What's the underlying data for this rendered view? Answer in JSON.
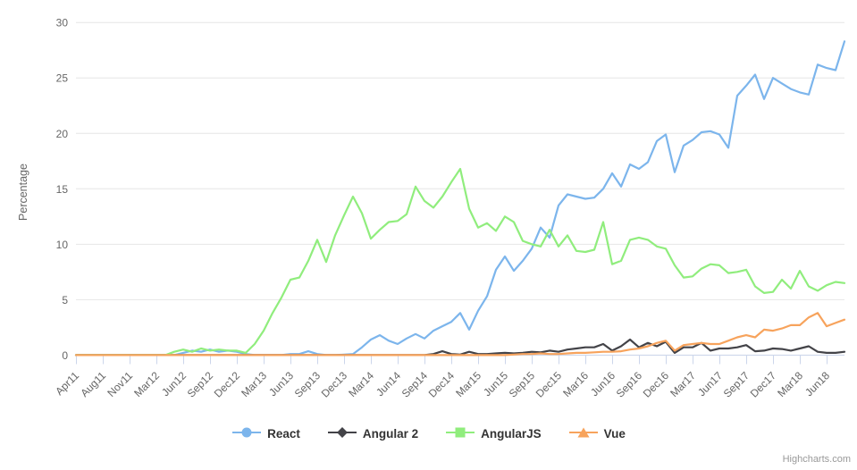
{
  "chart": {
    "credit": "Highcharts.com",
    "colors": {
      "grid": "#e6e6e6",
      "axis": "#ccd6eb",
      "label_text": "#666666",
      "legend_text": "#333333",
      "credit_text": "#999999"
    }
  },
  "chart_data": {
    "type": "line",
    "title": "",
    "xlabel": "",
    "ylabel": "Percentage",
    "ylim": [
      0,
      30
    ],
    "y_ticks": [
      0,
      5,
      10,
      15,
      20,
      25,
      30
    ],
    "grid": "horizontal",
    "legend_position": "bottom-center",
    "x_tick_labels": [
      "Apr11",
      "Aug11",
      "Nov11",
      "Mar12",
      "Jun12",
      "Sep12",
      "Dec12",
      "Mar13",
      "Jun13",
      "Sep13",
      "Dec13",
      "Mar14",
      "Jun14",
      "Sep14",
      "Dec14",
      "Mar15",
      "Jun15",
      "Sep15",
      "Dec15",
      "Mar16",
      "Jun16",
      "Sep16",
      "Dec16",
      "Mar17",
      "Jun17",
      "Sep17",
      "Dec17",
      "Mar18",
      "Jun18"
    ],
    "x_tick_every": 3,
    "series": [
      {
        "name": "React",
        "color": "#7cb5ec",
        "marker": "circle",
        "values": [
          0,
          0,
          0,
          0,
          0,
          0,
          0,
          0,
          0,
          0,
          0,
          0,
          0.2,
          0.4,
          0.3,
          0.5,
          0.3,
          0.4,
          0.3,
          0.1,
          0,
          0,
          0,
          0,
          0.1,
          0.1,
          0.35,
          0.1,
          0,
          0,
          0.05,
          0.1,
          0.7,
          1.4,
          1.8,
          1.3,
          1.0,
          1.5,
          1.9,
          1.5,
          2.2,
          2.6,
          3.0,
          3.8,
          2.3,
          4.0,
          5.3,
          7.7,
          8.9,
          7.6,
          8.5,
          9.6,
          11.5,
          10.6,
          13.5,
          14.5,
          14.3,
          14.1,
          14.2,
          15.0,
          16.4,
          15.2,
          17.2,
          16.8,
          17.4,
          19.3,
          19.9,
          16.5,
          18.9,
          19.4,
          20.1,
          20.2,
          19.9,
          18.7,
          23.4,
          24.3,
          25.3,
          23.1,
          25.0,
          24.5,
          24.0,
          23.7,
          23.5,
          26.2,
          25.9,
          25.7,
          28.3
        ]
      },
      {
        "name": "Angular 2",
        "color": "#434348",
        "marker": "diamond",
        "values": [
          0,
          0,
          0,
          0,
          0,
          0,
          0,
          0,
          0,
          0,
          0,
          0,
          0,
          0,
          0,
          0,
          0,
          0,
          0,
          0,
          0,
          0,
          0,
          0,
          0,
          0,
          0,
          0,
          0,
          0,
          0,
          0,
          0,
          0,
          0,
          0,
          0,
          0,
          0,
          0,
          0.1,
          0.35,
          0.1,
          0.05,
          0.3,
          0.1,
          0.1,
          0.15,
          0.2,
          0.15,
          0.2,
          0.3,
          0.25,
          0.4,
          0.3,
          0.5,
          0.6,
          0.7,
          0.7,
          1.0,
          0.4,
          0.8,
          1.4,
          0.7,
          1.1,
          0.8,
          1.2,
          0.2,
          0.7,
          0.7,
          1.1,
          0.4,
          0.6,
          0.6,
          0.7,
          0.9,
          0.35,
          0.4,
          0.6,
          0.55,
          0.4,
          0.6,
          0.8,
          0.3,
          0.2,
          0.2,
          0.3
        ]
      },
      {
        "name": "AngularJS",
        "color": "#90ed7d",
        "marker": "square",
        "values": [
          0,
          0,
          0,
          0,
          0,
          0,
          0,
          0,
          0,
          0,
          0,
          0.3,
          0.5,
          0.3,
          0.6,
          0.4,
          0.5,
          0.4,
          0.4,
          0.2,
          1.0,
          2.2,
          3.8,
          5.2,
          6.8,
          7.0,
          8.5,
          10.4,
          8.4,
          10.8,
          12.6,
          14.3,
          12.8,
          10.5,
          11.3,
          12.0,
          12.1,
          12.7,
          15.2,
          13.9,
          13.3,
          14.3,
          15.6,
          16.8,
          13.2,
          11.5,
          11.9,
          11.2,
          12.5,
          12.0,
          10.3,
          10.0,
          9.8,
          11.3,
          9.8,
          10.8,
          9.4,
          9.3,
          9.5,
          12.0,
          8.2,
          8.5,
          10.4,
          10.6,
          10.4,
          9.8,
          9.6,
          8.1,
          7.0,
          7.1,
          7.8,
          8.2,
          8.1,
          7.4,
          7.5,
          7.7,
          6.2,
          5.6,
          5.7,
          6.8,
          6.0,
          7.6,
          6.2,
          5.8,
          6.3,
          6.6,
          6.5
        ]
      },
      {
        "name": "Vue",
        "color": "#f7a35c",
        "marker": "triangle",
        "values": [
          0,
          0,
          0,
          0,
          0,
          0,
          0,
          0,
          0,
          0,
          0,
          0,
          0,
          0,
          0,
          0,
          0,
          0,
          0,
          0,
          0,
          0,
          0,
          0,
          0,
          0,
          0,
          0,
          0,
          0,
          0,
          0,
          0,
          0,
          0,
          0,
          0,
          0,
          0,
          0,
          0,
          0,
          0,
          0,
          0,
          0,
          0,
          0,
          0,
          0.05,
          0.1,
          0.1,
          0.15,
          0.1,
          0.1,
          0.15,
          0.2,
          0.2,
          0.25,
          0.3,
          0.3,
          0.35,
          0.5,
          0.6,
          0.8,
          1.1,
          1.3,
          0.4,
          0.9,
          1.0,
          1.1,
          1.0,
          1.0,
          1.3,
          1.6,
          1.8,
          1.6,
          2.3,
          2.2,
          2.4,
          2.7,
          2.7,
          3.4,
          3.8,
          2.6,
          2.9,
          3.2
        ]
      }
    ]
  }
}
